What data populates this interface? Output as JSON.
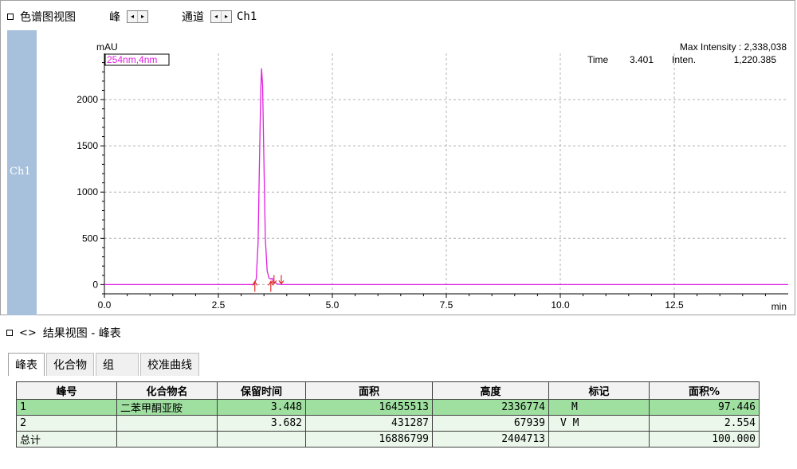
{
  "chrom_view": {
    "title": "色谱图视图",
    "peak_label": "峰",
    "channel_label": "通道",
    "channel_value": "Ch1",
    "side_channel": "Ch1",
    "spin_left": "◂",
    "spin_right": "▸"
  },
  "chart_data": {
    "type": "line",
    "ylabel": "mAU",
    "xlabel": "min",
    "legend": "254nm,4nm",
    "max_intensity_label": "Max Intensity : 2,338,038",
    "cursor": {
      "time_label": "Time",
      "time_value": "3.401",
      "inten_label": "Inten.",
      "inten_value": "1,220.385"
    },
    "xlim": [
      0,
      15
    ],
    "ylim": [
      -100,
      2500
    ],
    "xticks": [
      0,
      2.5,
      5,
      7.5,
      10,
      12.5
    ],
    "xtick_labels": [
      "0.0",
      "2.5",
      "5.0",
      "7.5",
      "10.0",
      "12.5"
    ],
    "yticks": [
      0,
      500,
      1000,
      1500,
      2000
    ],
    "ytick_labels": [
      "0",
      "500",
      "1000",
      "1500",
      "2000"
    ],
    "grid": true,
    "series": [
      {
        "color": "#e020e0",
        "x": [
          0,
          3.28,
          3.33,
          3.37,
          3.4,
          3.43,
          3.448,
          3.47,
          3.5,
          3.53,
          3.57,
          3.61,
          3.65,
          3.682,
          3.72,
          3.8,
          3.9,
          15
        ],
        "y": [
          0,
          0,
          60,
          450,
          1300,
          2100,
          2337,
          2150,
          1300,
          500,
          150,
          70,
          60,
          68,
          30,
          5,
          0,
          0
        ]
      }
    ],
    "peak_markers": [
      3.3,
      3.65,
      3.72,
      3.88
    ]
  },
  "results_view": {
    "title": "结果视图 -  峰表",
    "tabs": [
      "峰表",
      "化合物",
      "组",
      "校准曲线"
    ],
    "columns": [
      "峰号",
      "化合物名",
      "保留时间",
      "面积",
      "高度",
      "标记",
      "面积%"
    ],
    "rows": [
      [
        "1",
        "二苯甲酮亚胺",
        "3.448",
        "16455513",
        "2336774",
        "M",
        "97.446"
      ],
      [
        "2",
        "",
        "3.682",
        "431287",
        "67939",
        "V M",
        "2.554"
      ],
      [
        "总计",
        "",
        "",
        "16886799",
        "2404713",
        "",
        "100.000"
      ]
    ]
  }
}
